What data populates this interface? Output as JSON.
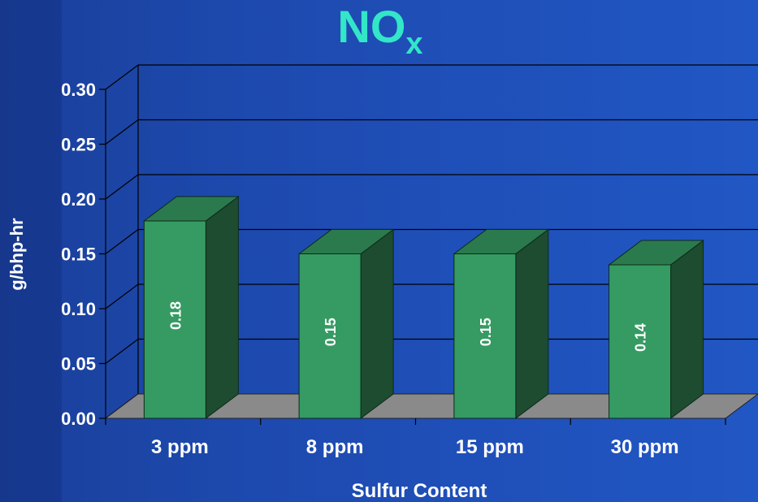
{
  "chart_data": {
    "type": "bar",
    "title": "NO",
    "title_subscript": "x",
    "categories": [
      "3 ppm",
      "8 ppm",
      "15 ppm",
      "30 ppm"
    ],
    "values": [
      0.18,
      0.15,
      0.15,
      0.14
    ],
    "value_labels": [
      "0.18",
      "0.15",
      "0.15",
      "0.14"
    ],
    "xlabel": "Sulfur Content",
    "ylabel": "g/bhp-hr",
    "ylim": [
      0,
      0.3
    ],
    "yticks": [
      "0.00",
      "0.05",
      "0.10",
      "0.15",
      "0.20",
      "0.25",
      "0.30"
    ],
    "grid": true,
    "legend": "none",
    "bar_style": "3d",
    "colors": {
      "bar_front": "#359b62",
      "bar_top": "#2b7a4d",
      "bar_side": "#1d4c30",
      "floor": "#8a8a8a",
      "title": "#33e6c8",
      "background": "#1f4fb8"
    }
  }
}
